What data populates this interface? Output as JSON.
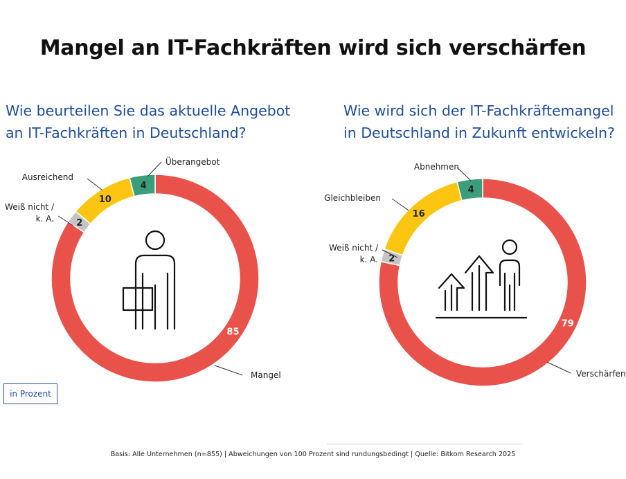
{
  "title": "Mangel an IT-Fachkräften wird sich verschärfen",
  "unit_label": "in Prozent",
  "footer": "Basis: Alle Unternehmen (n=855) | Abweichungen von 100 Prozent sind rundungsbedingt | Quelle: Bitkom Research 2025",
  "colors": {
    "red": "#e8524a",
    "yellow": "#fbc511",
    "green": "#3a9e7c",
    "gray": "#c4c4c4",
    "blue": "#1f4e9c",
    "icon": "#111111"
  },
  "chart_data": [
    {
      "type": "pie",
      "donut": true,
      "title_line1": "Wie beurteilen Sie das aktuelle Angebot",
      "title_line2": "an IT-Fachkräften in Deutschland?",
      "slices": [
        {
          "label": "Mangel",
          "value": 85,
          "value_label": "85",
          "color": "#e8524a"
        },
        {
          "label": "Weiß nicht / k. A.",
          "label_line1": "Weiß nicht /",
          "label_line2": "k. A.",
          "value": 2,
          "value_label": "2",
          "color": "#c4c4c4"
        },
        {
          "label": "Ausreichend",
          "value": 10,
          "value_label": "10",
          "color": "#fbc511"
        },
        {
          "label": "Überangebot",
          "value": 4,
          "value_label": "4",
          "color": "#3a9e7c"
        }
      ],
      "icon": "business-person-icon"
    },
    {
      "type": "pie",
      "donut": true,
      "title_line1": "Wie wird sich der IT-Fachkräftemangel",
      "title_line2": "in Deutschland in Zukunft entwickeln?",
      "slices": [
        {
          "label": "Verschärfen",
          "value": 79,
          "value_label": "79",
          "color": "#e8524a"
        },
        {
          "label": "Weiß nicht / k. A.",
          "label_line1": "Weiß nicht /",
          "label_line2": "k. A.",
          "value": 2,
          "value_label": "2",
          "color": "#c4c4c4"
        },
        {
          "label": "Gleichbleiben",
          "value": 16,
          "value_label": "16",
          "color": "#fbc511"
        },
        {
          "label": "Abnehmen",
          "value": 4,
          "value_label": "4",
          "color": "#3a9e7c"
        }
      ],
      "icon": "growth-arrows-person-icon"
    }
  ]
}
